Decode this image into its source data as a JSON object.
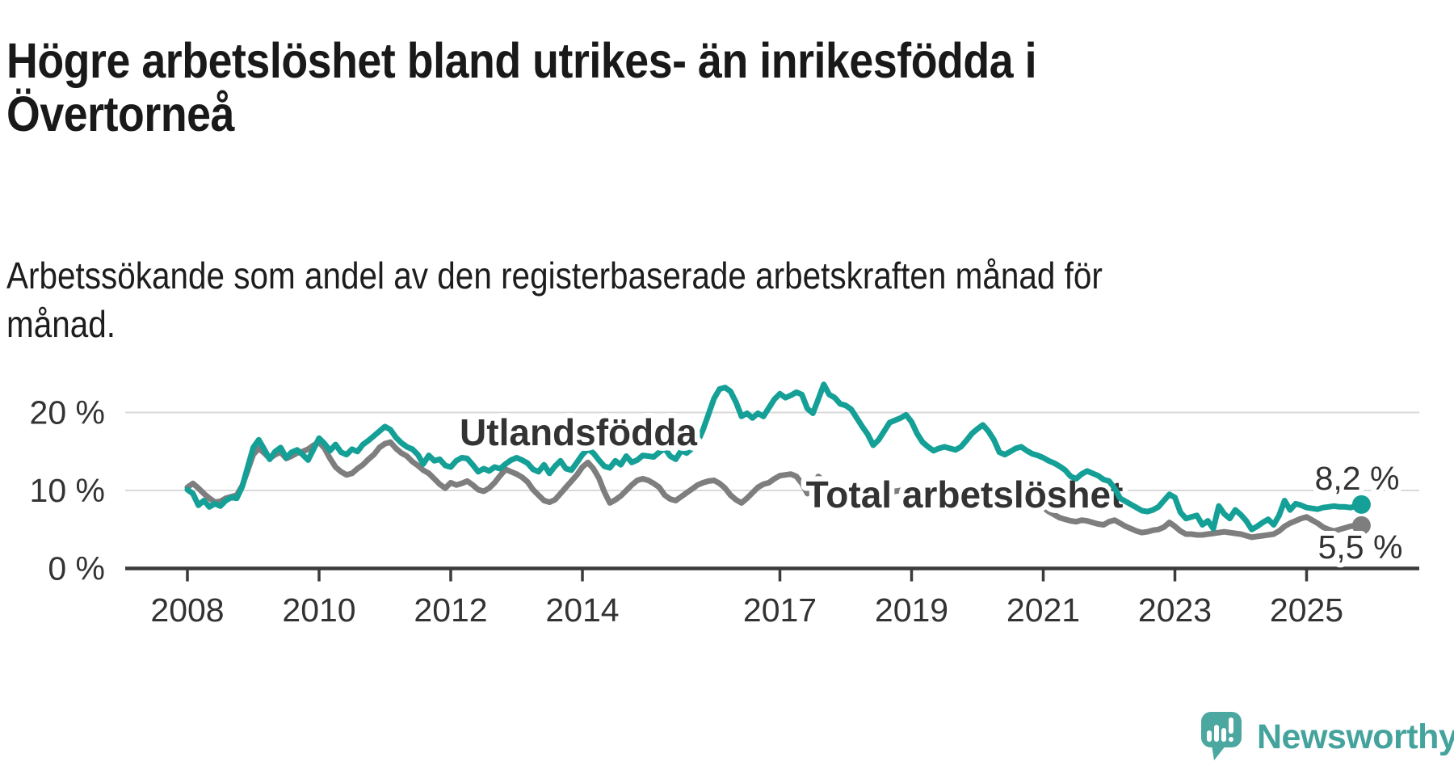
{
  "header": {
    "title": "Högre arbetslöshet bland utrikes- än inrikesfödda i Övertorneå",
    "subtitle": "Arbetssökande som andel av den registerbaserade arbetskraften månad för månad."
  },
  "branding": {
    "logo_text": "Newsworthy",
    "logo_icon": "newsworthy-speech-bubble-bar-chart-icon",
    "logo_color": "#44A39C"
  },
  "chart_data": {
    "type": "line",
    "title": "Högre arbetslöshet bland utrikes- än inrikesfödda i Övertorneå",
    "subtitle": "Arbetssökande som andel av den registerbaserade arbetskraften månad för månad.",
    "xlabel": "",
    "ylabel": "",
    "unit": "%",
    "grid": true,
    "legend_position": "inline-labels",
    "ylim": [
      0,
      25
    ],
    "x_start_year": 2008,
    "x_step_months": 1,
    "x_ticks": [
      {
        "label": "2008",
        "year": 2008
      },
      {
        "label": "2010",
        "year": 2010
      },
      {
        "label": "2012",
        "year": 2012
      },
      {
        "label": "2014",
        "year": 2014
      },
      {
        "label": "2017",
        "year": 2017
      },
      {
        "label": "2019",
        "year": 2019
      },
      {
        "label": "2021",
        "year": 2021
      },
      {
        "label": "2023",
        "year": 2023
      },
      {
        "label": "2025",
        "year": 2025
      }
    ],
    "y_ticks": [
      {
        "label": "0 %",
        "value": 0
      },
      {
        "label": "10 %",
        "value": 10
      },
      {
        "label": "20 %",
        "value": 20
      }
    ],
    "colors": {
      "gridline": "#D9D9D9",
      "axis": "#3B3B3B",
      "tick_text": "#333333"
    },
    "series": [
      {
        "name": "Utlandsfödda",
        "color": "#14A096",
        "end_label": "8,2 %",
        "end_value": 8.2,
        "values": [
          10.1,
          9.6,
          8.1,
          8.7,
          7.9,
          8.3,
          8.0,
          8.7,
          9.1,
          9.0,
          10.5,
          13.0,
          15.5,
          16.5,
          15.3,
          14.0,
          15.0,
          15.5,
          14.2,
          14.9,
          15.2,
          14.6,
          13.9,
          15.3,
          16.7,
          16.0,
          15.1,
          15.9,
          14.9,
          14.6,
          15.3,
          15.0,
          15.9,
          16.4,
          17.0,
          17.6,
          18.2,
          17.8,
          16.8,
          16.1,
          15.6,
          15.3,
          14.6,
          13.4,
          14.5,
          13.8,
          14.0,
          13.2,
          13.0,
          13.8,
          14.2,
          14.1,
          13.3,
          12.4,
          12.8,
          12.5,
          13.0,
          12.8,
          13.4,
          13.9,
          14.2,
          13.9,
          13.5,
          12.7,
          12.4,
          13.3,
          12.2,
          13.1,
          13.8,
          12.8,
          12.6,
          13.6,
          14.6,
          15.3,
          14.8,
          13.9,
          13.1,
          12.9,
          13.8,
          13.3,
          14.4,
          13.6,
          13.9,
          14.5,
          14.4,
          14.3,
          14.9,
          15.4,
          14.4,
          14.0,
          15.1,
          14.8,
          15.4,
          16.2,
          17.8,
          19.8,
          21.8,
          23.0,
          23.2,
          22.7,
          21.3,
          19.5,
          19.9,
          19.3,
          19.9,
          19.5,
          20.6,
          21.7,
          22.4,
          21.9,
          22.2,
          22.6,
          22.3,
          20.5,
          19.9,
          21.7,
          23.6,
          22.3,
          21.9,
          21.1,
          20.9,
          20.4,
          19.3,
          18.2,
          17.2,
          15.8,
          16.5,
          17.6,
          18.7,
          19.0,
          19.3,
          19.7,
          18.8,
          17.3,
          16.2,
          15.6,
          15.1,
          15.4,
          15.6,
          15.4,
          15.2,
          15.6,
          16.4,
          17.3,
          17.9,
          18.4,
          17.6,
          16.5,
          14.9,
          14.6,
          15.0,
          15.4,
          15.6,
          15.1,
          14.7,
          14.5,
          14.2,
          13.8,
          13.5,
          13.1,
          12.6,
          11.8,
          11.5,
          12.1,
          12.5,
          12.2,
          11.9,
          11.4,
          11.2,
          10.3,
          9.0,
          8.6,
          8.2,
          7.8,
          7.4,
          7.3,
          7.5,
          7.9,
          8.7,
          9.5,
          9.1,
          7.2,
          6.4,
          6.6,
          6.8,
          5.6,
          6.1,
          5.1,
          8.0,
          7.0,
          6.4,
          7.5,
          6.9,
          6.1,
          5.0,
          5.4,
          5.9,
          6.3,
          5.6,
          6.8,
          8.7,
          7.5,
          8.3,
          8.1,
          7.8,
          7.7,
          7.6,
          7.8,
          7.9,
          8.0,
          7.9,
          7.9,
          7.8,
          8.0,
          8.2
        ]
      },
      {
        "name": "Total arbetslöshet",
        "color": "#7E7E7E",
        "end_label": "5,5 %",
        "end_value": 5.5,
        "values": [
          10.4,
          10.9,
          10.3,
          9.6,
          9.0,
          8.5,
          8.6,
          9.0,
          9.2,
          9.4,
          10.6,
          12.6,
          14.6,
          15.4,
          14.8,
          14.1,
          14.6,
          14.9,
          14.1,
          14.4,
          14.8,
          15.0,
          15.3,
          15.8,
          16.2,
          15.4,
          14.1,
          13.0,
          12.4,
          12.0,
          12.2,
          12.8,
          13.3,
          14.0,
          14.6,
          15.5,
          16.0,
          16.2,
          15.4,
          14.8,
          14.4,
          13.7,
          13.2,
          12.6,
          12.2,
          11.5,
          10.8,
          10.3,
          11.0,
          10.7,
          10.9,
          11.2,
          10.7,
          10.1,
          9.9,
          10.3,
          11.0,
          11.9,
          12.7,
          12.4,
          12.1,
          11.7,
          11.1,
          10.1,
          9.4,
          8.7,
          8.5,
          8.8,
          9.6,
          10.4,
          11.2,
          12.0,
          13.0,
          13.6,
          12.8,
          11.6,
          9.8,
          8.4,
          8.8,
          9.3,
          10.0,
          10.7,
          11.3,
          11.5,
          11.3,
          10.9,
          10.4,
          9.4,
          8.9,
          8.7,
          9.2,
          9.7,
          10.2,
          10.7,
          11.0,
          11.2,
          11.3,
          10.9,
          10.3,
          9.4,
          8.8,
          8.4,
          9.0,
          9.7,
          10.4,
          10.8,
          11.0,
          11.5,
          11.9,
          12.0,
          12.1,
          11.8,
          10.9,
          9.6,
          10.6,
          11.8,
          11.2,
          10.6,
          10.3,
          10.5,
          10.4,
          10.1,
          9.8,
          9.6,
          9.4,
          9.3,
          9.4,
          9.6,
          9.7,
          9.9,
          10.0,
          10.1,
          9.9,
          9.7,
          9.5,
          9.3,
          9.2,
          9.3,
          9.4,
          9.5,
          9.6,
          9.7,
          9.9,
          10.1,
          10.4,
          10.6,
          10.5,
          10.3,
          10.0,
          9.8,
          9.6,
          9.4,
          9.3,
          9.1,
          8.8,
          8.3,
          7.8,
          7.3,
          6.9,
          6.5,
          6.3,
          6.1,
          6.0,
          6.2,
          6.1,
          5.9,
          5.7,
          5.6,
          6.0,
          6.2,
          5.8,
          5.4,
          5.1,
          4.8,
          4.6,
          4.7,
          4.9,
          5.0,
          5.3,
          5.9,
          5.4,
          4.8,
          4.4,
          4.4,
          4.3,
          4.3,
          4.4,
          4.5,
          4.6,
          4.7,
          4.6,
          4.5,
          4.4,
          4.2,
          4.0,
          4.1,
          4.2,
          4.3,
          4.4,
          4.8,
          5.4,
          5.8,
          6.1,
          6.4,
          6.6,
          6.2,
          5.8,
          5.3,
          5.0,
          4.8,
          5.0,
          5.2,
          5.4,
          5.5,
          5.5
        ]
      }
    ]
  }
}
